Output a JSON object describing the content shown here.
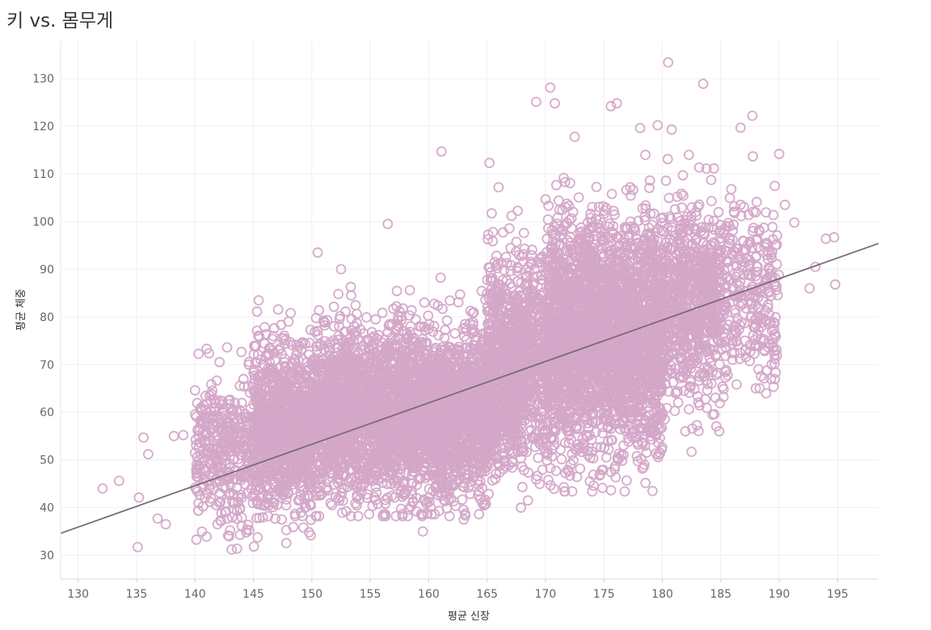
{
  "title": "키 vs. 몸무게",
  "chart_data": {
    "type": "scatter",
    "title": "키 vs. 몸무게",
    "xlabel": "평균 신장",
    "ylabel": "평균 체중",
    "xlim": [
      128.5,
      198.5
    ],
    "ylim": [
      25,
      138
    ],
    "x_ticks": [
      130,
      135,
      140,
      145,
      150,
      155,
      160,
      165,
      170,
      175,
      180,
      185,
      190,
      195
    ],
    "y_ticks": [
      30,
      40,
      50,
      60,
      70,
      80,
      90,
      100,
      110,
      120,
      130
    ],
    "grid": true,
    "marker_color": "#d4a6c8",
    "trend_color": "#7a6a7a",
    "trend_line": {
      "x": [
        128.5,
        198.5
      ],
      "y": [
        34.6,
        95.4
      ]
    },
    "clusters": [
      {
        "x_range": [
          140,
          150
        ],
        "y_mean": 52,
        "y_sd": 8,
        "count": 700
      },
      {
        "x_range": [
          145,
          165
        ],
        "y_mean": 59,
        "y_sd": 8,
        "count": 2600
      },
      {
        "x_range": [
          150,
          168
        ],
        "y_mean": 62,
        "y_sd": 9,
        "count": 1500
      },
      {
        "x_range": [
          165,
          180
        ],
        "y_mean": 72,
        "y_sd": 11,
        "count": 2600
      },
      {
        "x_range": [
          170,
          185
        ],
        "y_mean": 82,
        "y_sd": 10,
        "count": 1500
      },
      {
        "x_range": [
          180,
          190
        ],
        "y_mean": 85,
        "y_sd": 9,
        "count": 600
      }
    ],
    "points": [
      [
        132.1,
        44
      ],
      [
        133.5,
        45.6
      ],
      [
        135.1,
        31.7
      ],
      [
        135.2,
        42.1
      ],
      [
        135.6,
        54.7
      ],
      [
        136.0,
        51.2
      ],
      [
        136.8,
        37.7
      ],
      [
        137.5,
        36.5
      ],
      [
        138.2,
        55.0
      ],
      [
        139.0,
        55.2
      ],
      [
        140.0,
        64.6
      ],
      [
        141.0,
        73.3
      ],
      [
        141.0,
        33.9
      ],
      [
        142.1,
        70.5
      ],
      [
        143.0,
        35.2
      ],
      [
        144.6,
        70.0
      ],
      [
        148.0,
        79.0
      ],
      [
        150.5,
        93.5
      ],
      [
        152.5,
        90.0
      ],
      [
        156.5,
        99.5
      ],
      [
        159.5,
        35.0
      ],
      [
        161.1,
        114.7
      ],
      [
        163.0,
        37.5
      ],
      [
        165.2,
        112.3
      ],
      [
        168.5,
        41.5
      ],
      [
        169.2,
        125.1
      ],
      [
        170.4,
        128.1
      ],
      [
        170.8,
        124.8
      ],
      [
        172.5,
        117.8
      ],
      [
        173.8,
        45.5
      ],
      [
        175.6,
        124.2
      ],
      [
        176.1,
        124.8
      ],
      [
        176.5,
        51.0
      ],
      [
        178.1,
        119.6
      ],
      [
        178.2,
        50.2
      ],
      [
        179.6,
        120.2
      ],
      [
        180.5,
        133.4
      ],
      [
        180.8,
        119.3
      ],
      [
        182.5,
        51.7
      ],
      [
        183.5,
        128.9
      ],
      [
        186.7,
        119.7
      ],
      [
        187.7,
        122.2
      ],
      [
        188.0,
        65.0
      ],
      [
        189.3,
        67.0
      ],
      [
        189.7,
        68.3
      ],
      [
        190.0,
        114.2
      ],
      [
        190.5,
        103.5
      ],
      [
        191.3,
        99.8
      ],
      [
        192.6,
        86.0
      ],
      [
        194.0,
        96.4
      ],
      [
        194.7,
        96.7
      ],
      [
        194.8,
        86.8
      ],
      [
        193.1,
        90.5
      ],
      [
        186.0,
        71.0
      ],
      [
        188.5,
        78.0
      ]
    ]
  }
}
